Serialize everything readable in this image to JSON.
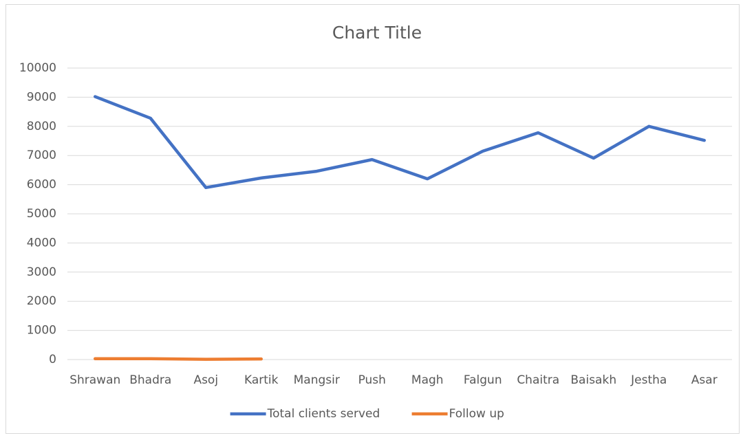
{
  "chart_data": {
    "type": "line",
    "title": "Chart Title",
    "categories": [
      "Shrawan",
      "Bhadra",
      "Asoj",
      "Kartik",
      "Mangsir",
      "Push",
      "Magh",
      "Falgun",
      "Chaitra",
      "Baisakh",
      "Jestha",
      "Asar"
    ],
    "series": [
      {
        "name": "Total clients served",
        "color": "#4472c4",
        "values": [
          9020,
          8280,
          5900,
          6230,
          6460,
          6860,
          6200,
          7150,
          7780,
          6910,
          8000,
          7520
        ]
      },
      {
        "name": "Follow up",
        "color": "#ed7d31",
        "values": [
          30,
          30,
          10,
          20,
          null,
          null,
          null,
          null,
          null,
          null,
          null,
          null
        ]
      }
    ],
    "ylim": [
      0,
      10000
    ],
    "yticks": [
      0,
      1000,
      2000,
      3000,
      4000,
      5000,
      6000,
      7000,
      8000,
      9000,
      10000
    ],
    "grid": true,
    "legend": "bottom"
  }
}
